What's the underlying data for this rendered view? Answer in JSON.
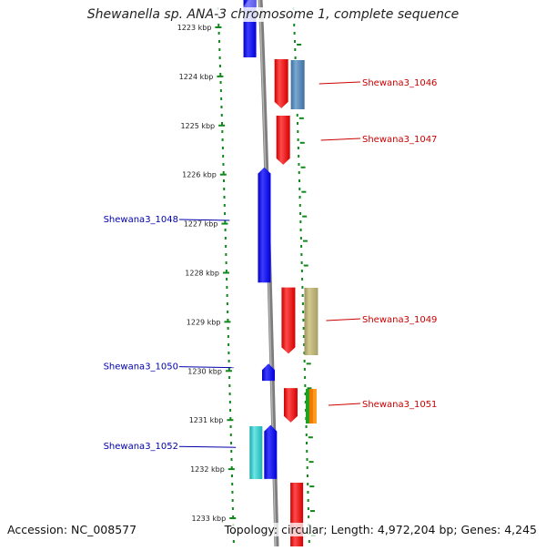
{
  "title": "Shewanella sp. ANA-3 chromosome 1, complete sequence",
  "accession": "Accession: NC_008577",
  "summary": "Topology: circular; Length: 4,972,204 bp; Genes: 4,245",
  "ticks": [
    {
      "kbp": 1223,
      "label": "1223 kbp"
    },
    {
      "kbp": 1224,
      "label": "1224 kbp"
    },
    {
      "kbp": 1225,
      "label": "1225 kbp"
    },
    {
      "kbp": 1226,
      "label": "1226 kbp"
    },
    {
      "kbp": 1227,
      "label": "1227 kbp"
    },
    {
      "kbp": 1228,
      "label": "1228 kbp"
    },
    {
      "kbp": 1229,
      "label": "1229 kbp"
    },
    {
      "kbp": 1230,
      "label": "1230 kbp"
    },
    {
      "kbp": 1231,
      "label": "1231 kbp"
    },
    {
      "kbp": 1232,
      "label": "1232 kbp"
    },
    {
      "kbp": 1233,
      "label": "1233 kbp"
    }
  ],
  "genes": [
    {
      "name": "Shewana3_1046",
      "strand": "reverse",
      "start_kbp": 1223.65,
      "end_kbp": 1224.65,
      "label_side": "right",
      "color": "#ee0000"
    },
    {
      "name": "Shewana3_1047",
      "strand": "reverse",
      "start_kbp": 1224.8,
      "end_kbp": 1225.8,
      "label_side": "right",
      "color": "#ee0000"
    },
    {
      "name": "Shewana3_1048",
      "strand": "forward",
      "start_kbp": 1225.85,
      "end_kbp": 1228.2,
      "label_side": "left",
      "color": "#0000ee"
    },
    {
      "name": "Shewana3_1049",
      "strand": "reverse",
      "start_kbp": 1228.3,
      "end_kbp": 1229.65,
      "label_side": "right",
      "color": "#ee0000"
    },
    {
      "name": "Shewana3_1050",
      "strand": "forward",
      "start_kbp": 1229.85,
      "end_kbp": 1230.2,
      "label_side": "left",
      "color": "#0000ee"
    },
    {
      "name": "Shewana3_1051",
      "strand": "reverse",
      "start_kbp": 1230.35,
      "end_kbp": 1231.05,
      "label_side": "right",
      "color": "#ee0000"
    },
    {
      "name": "Shewana3_1052",
      "strand": "forward",
      "start_kbp": 1231.1,
      "end_kbp": 1232.2,
      "label_side": "left",
      "color": "#0000ee"
    }
  ],
  "colors": {
    "forward": "#0000ee",
    "reverse": "#ee0000",
    "ruler": "#11881b",
    "backbone": "#888888",
    "label_forward": "#0000aa",
    "label_reverse": "#cc0000"
  }
}
